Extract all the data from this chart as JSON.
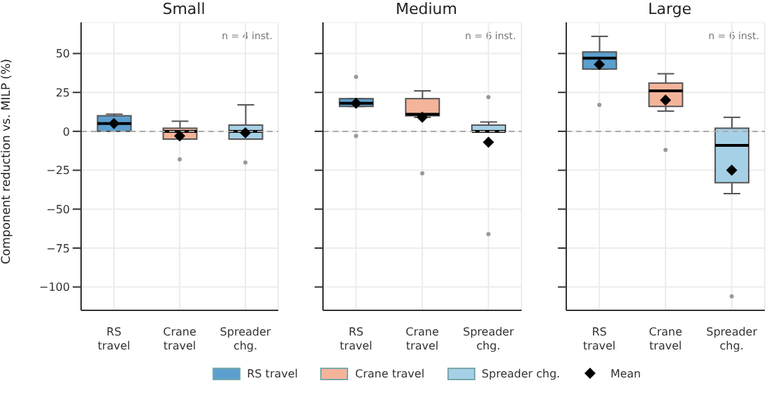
{
  "chart_data": [
    {
      "type": "box",
      "title": "Small",
      "ylabel": "Component reduction vs. MILP (%)",
      "categories": [
        "RS travel",
        "Crane travel",
        "Spreader chg."
      ],
      "colors": [
        "#5b9fcf",
        "#f4b49a",
        "#a6d0e6"
      ],
      "boxes": [
        {
          "low": 0,
          "q1": 0,
          "median": 5,
          "q3": 10,
          "high": 11
        },
        {
          "low": -5,
          "q1": -5,
          "median": 0,
          "q3": 2,
          "high": 6.5,
          "outliers": [
            -18
          ]
        },
        {
          "low": -5,
          "q1": -5,
          "median": 0,
          "q3": 4,
          "high": 17,
          "outliers": [
            -20
          ]
        }
      ],
      "series": [
        {
          "name": "Mean",
          "type": "scatter",
          "color": "#000000",
          "marker": "diamond",
          "values": [
            5,
            -3,
            -1
          ]
        }
      ],
      "annotations": [
        "n = 4 inst."
      ],
      "ylim": [
        -115,
        70
      ],
      "yticks": [
        -100,
        -75,
        -50,
        -25,
        0,
        25,
        50
      ],
      "grid": true,
      "legend": "bottom",
      "ref_lines": [
        {
          "axis": "y",
          "value": 0,
          "label": null,
          "color": "#aaaaaa",
          "line_style": "dashed"
        }
      ]
    },
    {
      "type": "box",
      "title": "Medium",
      "categories": [
        "RS travel",
        "Crane travel",
        "Spreader chg."
      ],
      "colors": [
        "#5b9fcf",
        "#f4b49a",
        "#a6d0e6"
      ],
      "boxes": [
        {
          "low": 16,
          "q1": 16,
          "median": 18,
          "q3": 21,
          "high": 21,
          "outliers": [
            35,
            -3
          ]
        },
        {
          "low": 9,
          "q1": 10,
          "median": 11,
          "q3": 21,
          "high": 26,
          "outliers": [
            -27
          ]
        },
        {
          "low": 0,
          "q1": 0,
          "median": 0,
          "q3": 4,
          "high": 6,
          "outliers": [
            22,
            -66
          ]
        }
      ],
      "series": [
        {
          "type": "scatter",
          "color": "#000000",
          "marker": "diamond",
          "values": [
            18,
            9,
            -7
          ]
        }
      ],
      "annotations": [
        "n = 6 inst."
      ],
      "ylim": [
        -115,
        70
      ],
      "yticks": [
        -100,
        -75,
        -50,
        -25,
        0,
        25,
        50
      ],
      "grid": true,
      "tick_labels": "x",
      "ref_lines": [
        {
          "axis": "y",
          "value": 0,
          "label": null,
          "color": "#aaaaaa",
          "line_style": "dashed"
        }
      ]
    },
    {
      "type": "box",
      "title": "Large",
      "categories": [
        "RS travel",
        "Crane travel",
        "Spreader chg."
      ],
      "colors": [
        "#5b9fcf",
        "#f4b49a",
        "#a6d0e6"
      ],
      "boxes": [
        {
          "low": 40,
          "q1": 40,
          "median": 47,
          "q3": 51,
          "high": 61,
          "outliers": [
            17
          ]
        },
        {
          "low": 13,
          "q1": 16,
          "median": 26,
          "q3": 31,
          "high": 37,
          "outliers": [
            -12
          ]
        },
        {
          "low": -40,
          "q1": -33,
          "median": -9,
          "q3": 2,
          "high": 9,
          "outliers": [
            -106
          ]
        }
      ],
      "series": [
        {
          "type": "scatter",
          "color": "#000000",
          "marker": "diamond",
          "values": [
            43,
            20,
            -25
          ]
        }
      ],
      "annotations": [
        "n = 6 inst."
      ],
      "ylim": [
        -115,
        70
      ],
      "yticks": [
        -100,
        -75,
        -50,
        -25,
        0,
        25,
        50
      ],
      "grid": true,
      "tick_labels": "x",
      "ref_lines": [
        {
          "axis": "y",
          "value": 0,
          "label": null,
          "color": "#aaaaaa",
          "line_style": "dashed"
        }
      ]
    }
  ]
}
